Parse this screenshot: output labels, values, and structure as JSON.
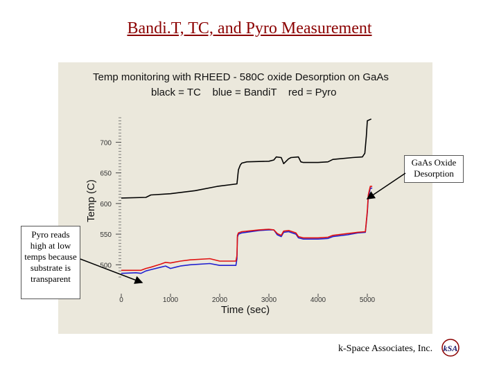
{
  "slide": {
    "title": "Bandi.T, TC, and Pyro Measurement",
    "footer": "k-Space Associates, Inc.",
    "logo_text": "kSA"
  },
  "callouts": {
    "gaas_oxide": "GaAs Oxide Desorption",
    "pyro_note": "Pyro reads high at low temps because substrate is transparent"
  },
  "chart_data": {
    "type": "line",
    "title": "Temp monitoring with RHEED - 580C oxide Desorption on GaAs",
    "subtitle": "black = TC    blue = BandiT    red = Pyro",
    "xlabel": "Time (sec)",
    "ylabel": "Temp (C)",
    "xlim": [
      0,
      5000
    ],
    "ylim": [
      480,
      740
    ],
    "xticks": [
      0,
      1000,
      2000,
      3000,
      4000,
      5000
    ],
    "xtick_labels": [
      "0",
      "1000",
      "2000",
      "3000",
      "4000",
      "5000"
    ],
    "yticks": [
      500,
      550,
      600,
      650,
      700
    ],
    "ytick_labels": [
      "500",
      "550",
      "600",
      "650",
      "700"
    ],
    "grid": false,
    "colors": {
      "tc": "#000000",
      "bandit": "#1f1fd0",
      "pyro": "#e01010",
      "panel_bg": "#ebe8dc"
    },
    "series": [
      {
        "name": "TC",
        "color": "#000000",
        "points": [
          [
            0,
            609
          ],
          [
            500,
            610
          ],
          [
            600,
            614
          ],
          [
            1000,
            616
          ],
          [
            1500,
            621
          ],
          [
            1950,
            628
          ],
          [
            2350,
            632
          ],
          [
            2380,
            655
          ],
          [
            2420,
            663
          ],
          [
            2450,
            666
          ],
          [
            2550,
            668
          ],
          [
            3000,
            669
          ],
          [
            3100,
            671
          ],
          [
            3150,
            676
          ],
          [
            3250,
            675
          ],
          [
            3300,
            665
          ],
          [
            3400,
            673
          ],
          [
            3450,
            675
          ],
          [
            3600,
            676
          ],
          [
            3650,
            668
          ],
          [
            3700,
            667
          ],
          [
            4000,
            667
          ],
          [
            4200,
            668
          ],
          [
            4300,
            672
          ],
          [
            4700,
            675
          ],
          [
            4900,
            676
          ],
          [
            4950,
            682
          ],
          [
            4980,
            710
          ],
          [
            5000,
            735
          ],
          [
            5080,
            738
          ]
        ]
      },
      {
        "name": "BandiT",
        "color": "#1f1fd0",
        "points": [
          [
            0,
            486
          ],
          [
            300,
            487
          ],
          [
            400,
            486
          ],
          [
            500,
            490
          ],
          [
            600,
            492
          ],
          [
            800,
            496
          ],
          [
            900,
            498
          ],
          [
            1000,
            494
          ],
          [
            1200,
            498
          ],
          [
            1400,
            500
          ],
          [
            1800,
            502
          ],
          [
            2000,
            499
          ],
          [
            2330,
            499
          ],
          [
            2350,
            510
          ],
          [
            2360,
            545
          ],
          [
            2380,
            550
          ],
          [
            2450,
            552
          ],
          [
            2800,
            556
          ],
          [
            3000,
            557
          ],
          [
            3100,
            557
          ],
          [
            3170,
            549
          ],
          [
            3250,
            546
          ],
          [
            3300,
            553
          ],
          [
            3400,
            554
          ],
          [
            3550,
            550
          ],
          [
            3600,
            544
          ],
          [
            3700,
            542
          ],
          [
            4000,
            542
          ],
          [
            4200,
            543
          ],
          [
            4300,
            546
          ],
          [
            4600,
            549
          ],
          [
            4800,
            552
          ],
          [
            4960,
            553
          ],
          [
            5000,
            585
          ],
          [
            5020,
            610
          ],
          [
            5060,
            625
          ],
          [
            5100,
            625
          ]
        ]
      },
      {
        "name": "Pyro",
        "color": "#e01010",
        "points": [
          [
            0,
            491
          ],
          [
            300,
            491
          ],
          [
            400,
            491
          ],
          [
            500,
            494
          ],
          [
            600,
            496
          ],
          [
            800,
            501
          ],
          [
            900,
            504
          ],
          [
            1000,
            503
          ],
          [
            1200,
            506
          ],
          [
            1400,
            508
          ],
          [
            1800,
            510
          ],
          [
            2000,
            506
          ],
          [
            2330,
            506
          ],
          [
            2350,
            515
          ],
          [
            2360,
            548
          ],
          [
            2380,
            552
          ],
          [
            2450,
            554
          ],
          [
            2800,
            557
          ],
          [
            3000,
            558
          ],
          [
            3100,
            557
          ],
          [
            3170,
            551
          ],
          [
            3250,
            548
          ],
          [
            3300,
            555
          ],
          [
            3400,
            556
          ],
          [
            3550,
            552
          ],
          [
            3600,
            546
          ],
          [
            3700,
            544
          ],
          [
            4000,
            544
          ],
          [
            4200,
            545
          ],
          [
            4300,
            548
          ],
          [
            4600,
            551
          ],
          [
            4800,
            553
          ],
          [
            4960,
            554
          ],
          [
            5000,
            588
          ],
          [
            5020,
            614
          ],
          [
            5060,
            628
          ],
          [
            5100,
            628
          ]
        ]
      }
    ]
  }
}
